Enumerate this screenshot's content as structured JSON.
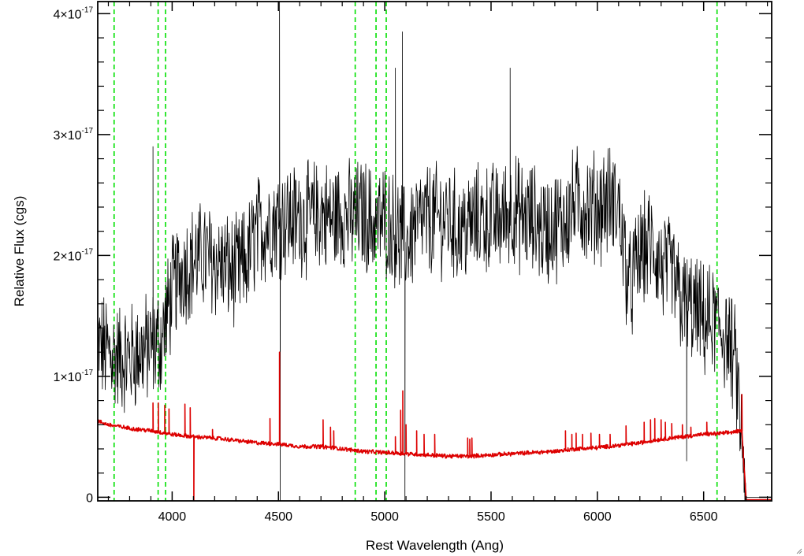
{
  "chart_data": {
    "type": "line",
    "xlabel": "Rest Wavelength (Ang)",
    "ylabel": "Relative Flux (cgs)",
    "xlim": [
      3650,
      6820
    ],
    "ylim": [
      -0.03,
      4.1
    ],
    "y_unit_exponent": -17,
    "x_ticks": [
      4000,
      4500,
      5000,
      5500,
      6000,
      6500
    ],
    "x_tick_labels": [
      "4000",
      "4500",
      "5000",
      "5500",
      "6000",
      "6500"
    ],
    "y_ticks": [
      0,
      1,
      2,
      3,
      4
    ],
    "y_tick_labels": [
      {
        "mantissa": "0",
        "exp": ""
      },
      {
        "mantissa": "1×10",
        "exp": "-17"
      },
      {
        "mantissa": "2×10",
        "exp": "-17"
      },
      {
        "mantissa": "3×10",
        "exp": "-17"
      },
      {
        "mantissa": "4×10",
        "exp": "-17"
      }
    ],
    "grid": false,
    "reference_lines": {
      "color": "#00e000",
      "style": "dashed",
      "x": [
        3727,
        3934,
        3969,
        4861,
        4959,
        5007,
        6563
      ]
    },
    "series": [
      {
        "color": "#000000",
        "description_points": [
          [
            3650,
            1.25
          ],
          [
            3700,
            1.2
          ],
          [
            3750,
            1.15
          ],
          [
            3800,
            1.15
          ],
          [
            3850,
            1.2
          ],
          [
            3900,
            1.25
          ],
          [
            3950,
            1.3
          ],
          [
            4000,
            1.7
          ],
          [
            4050,
            1.9
          ],
          [
            4100,
            1.95
          ],
          [
            4150,
            2.0
          ],
          [
            4200,
            1.95
          ],
          [
            4250,
            1.9
          ],
          [
            4300,
            1.85
          ],
          [
            4350,
            1.95
          ],
          [
            4400,
            2.2
          ],
          [
            4450,
            2.25
          ],
          [
            4500,
            2.3
          ],
          [
            4550,
            2.3
          ],
          [
            4600,
            2.3
          ],
          [
            4650,
            2.3
          ],
          [
            4700,
            2.35
          ],
          [
            4750,
            2.3
          ],
          [
            4800,
            2.35
          ],
          [
            4850,
            2.3
          ],
          [
            4900,
            2.35
          ],
          [
            4950,
            2.25
          ],
          [
            5000,
            2.3
          ],
          [
            5050,
            2.2
          ],
          [
            5100,
            2.1
          ],
          [
            5150,
            2.25
          ],
          [
            5200,
            2.3
          ],
          [
            5250,
            2.3
          ],
          [
            5300,
            2.3
          ],
          [
            5350,
            2.2
          ],
          [
            5400,
            2.25
          ],
          [
            5450,
            2.3
          ],
          [
            5500,
            2.3
          ],
          [
            5550,
            2.3
          ],
          [
            5600,
            2.4
          ],
          [
            5650,
            2.3
          ],
          [
            5700,
            2.3
          ],
          [
            5750,
            2.2
          ],
          [
            5800,
            2.25
          ],
          [
            5850,
            2.3
          ],
          [
            5900,
            2.45
          ],
          [
            5950,
            2.4
          ],
          [
            6000,
            2.4
          ],
          [
            6050,
            2.45
          ],
          [
            6100,
            2.4
          ],
          [
            6150,
            1.7
          ],
          [
            6200,
            2.0
          ],
          [
            6250,
            2.1
          ],
          [
            6300,
            1.9
          ],
          [
            6350,
            1.85
          ],
          [
            6400,
            1.6
          ],
          [
            6450,
            1.55
          ],
          [
            6500,
            1.45
          ],
          [
            6550,
            1.45
          ],
          [
            6600,
            1.35
          ],
          [
            6650,
            1.1
          ],
          [
            6700,
            0.0
          ],
          [
            6820,
            0.0
          ]
        ],
        "spikes": [
          {
            "x": 3910,
            "y": 2.9
          },
          {
            "x": 4505,
            "y": 4.2
          },
          {
            "x": 4508,
            "y": -0.3
          },
          {
            "x": 5050,
            "y": 3.55
          },
          {
            "x": 5083,
            "y": 3.85
          },
          {
            "x": 5095,
            "y": -0.3
          },
          {
            "x": 5590,
            "y": 3.55
          },
          {
            "x": 6420,
            "y": 0.3
          }
        ],
        "noise_amplitude": 0.42
      },
      {
        "color": "#dd0000",
        "description_points": [
          [
            3650,
            0.63
          ],
          [
            3700,
            0.6
          ],
          [
            3800,
            0.57
          ],
          [
            3900,
            0.55
          ],
          [
            4000,
            0.52
          ],
          [
            4100,
            0.5
          ],
          [
            4200,
            0.49
          ],
          [
            4300,
            0.47
          ],
          [
            4400,
            0.45
          ],
          [
            4500,
            0.44
          ],
          [
            4600,
            0.42
          ],
          [
            4700,
            0.42
          ],
          [
            4800,
            0.4
          ],
          [
            4900,
            0.38
          ],
          [
            5000,
            0.37
          ],
          [
            5100,
            0.36
          ],
          [
            5200,
            0.35
          ],
          [
            5300,
            0.34
          ],
          [
            5400,
            0.34
          ],
          [
            5500,
            0.35
          ],
          [
            5600,
            0.36
          ],
          [
            5700,
            0.37
          ],
          [
            5800,
            0.38
          ],
          [
            5900,
            0.4
          ],
          [
            6000,
            0.41
          ],
          [
            6100,
            0.43
          ],
          [
            6200,
            0.45
          ],
          [
            6300,
            0.48
          ],
          [
            6400,
            0.5
          ],
          [
            6500,
            0.52
          ],
          [
            6600,
            0.53
          ],
          [
            6680,
            0.55
          ],
          [
            6700,
            -0.02
          ],
          [
            6820,
            -0.02
          ]
        ],
        "spikes": [
          {
            "x": 3910,
            "y": 0.78
          },
          {
            "x": 3935,
            "y": 0.78
          },
          {
            "x": 3965,
            "y": 0.76
          },
          {
            "x": 3985,
            "y": 0.73
          },
          {
            "x": 4060,
            "y": 0.77
          },
          {
            "x": 4085,
            "y": 0.74
          },
          {
            "x": 4102,
            "y": -0.1
          },
          {
            "x": 4190,
            "y": 0.56
          },
          {
            "x": 4460,
            "y": 0.65
          },
          {
            "x": 4505,
            "y": 1.2
          },
          {
            "x": 4710,
            "y": 0.64
          },
          {
            "x": 4745,
            "y": 0.58
          },
          {
            "x": 4760,
            "y": 0.55
          },
          {
            "x": 5050,
            "y": 0.5
          },
          {
            "x": 5075,
            "y": 0.72
          },
          {
            "x": 5085,
            "y": 0.88
          },
          {
            "x": 5100,
            "y": 0.6
          },
          {
            "x": 5150,
            "y": 0.55
          },
          {
            "x": 5185,
            "y": 0.52
          },
          {
            "x": 5235,
            "y": 0.52
          },
          {
            "x": 5390,
            "y": 0.49
          },
          {
            "x": 5400,
            "y": 0.48
          },
          {
            "x": 5410,
            "y": 0.49
          },
          {
            "x": 5850,
            "y": 0.55
          },
          {
            "x": 5880,
            "y": 0.52
          },
          {
            "x": 5900,
            "y": 0.53
          },
          {
            "x": 5930,
            "y": 0.52
          },
          {
            "x": 5970,
            "y": 0.53
          },
          {
            "x": 6010,
            "y": 0.52
          },
          {
            "x": 6060,
            "y": 0.52
          },
          {
            "x": 6135,
            "y": 0.59
          },
          {
            "x": 6220,
            "y": 0.62
          },
          {
            "x": 6250,
            "y": 0.64
          },
          {
            "x": 6270,
            "y": 0.65
          },
          {
            "x": 6300,
            "y": 0.64
          },
          {
            "x": 6320,
            "y": 0.62
          },
          {
            "x": 6350,
            "y": 0.61
          },
          {
            "x": 6400,
            "y": 0.6
          },
          {
            "x": 6440,
            "y": 0.58
          },
          {
            "x": 6515,
            "y": 0.62
          },
          {
            "x": 6680,
            "y": 0.85
          }
        ],
        "noise_amplitude": 0.015
      }
    ]
  }
}
